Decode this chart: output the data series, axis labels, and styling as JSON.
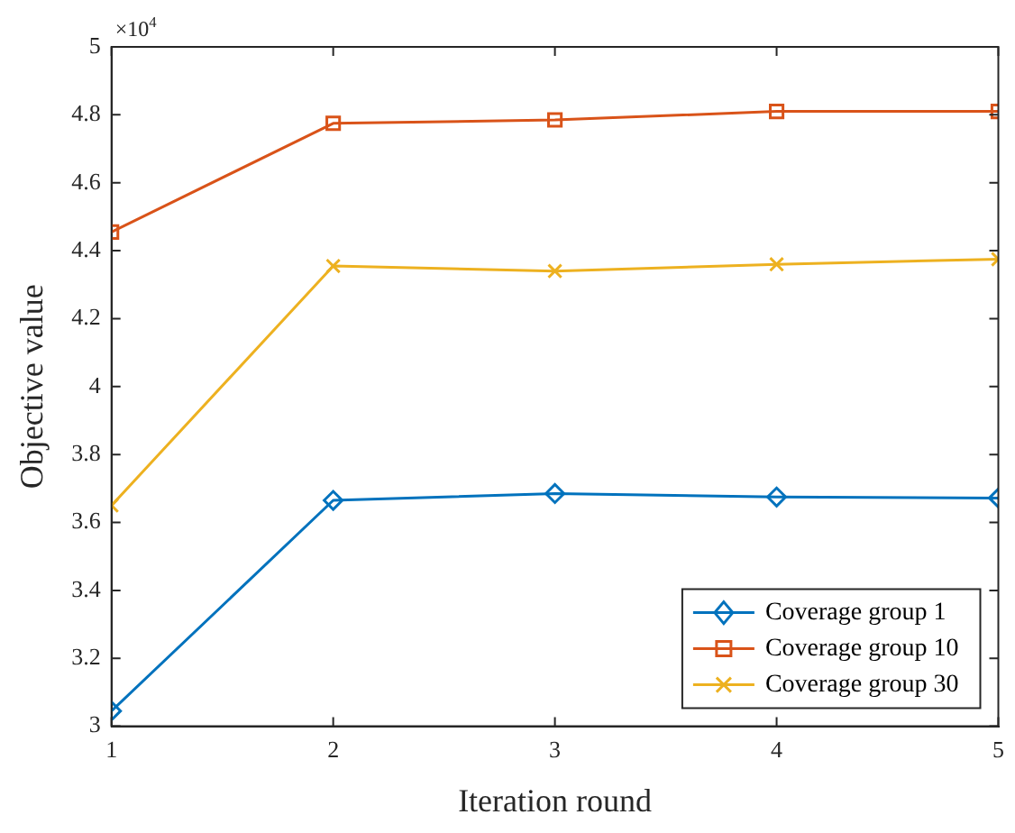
{
  "chart_data": {
    "type": "line",
    "xlabel": "Iteration round",
    "ylabel": "Objective value",
    "annotations": [
      "×10$^{4}$"
    ],
    "x": [
      1,
      2,
      3,
      4,
      5
    ],
    "series": [
      {
        "name": "Coverage group 1",
        "color": "#0072bd",
        "marker": "diamond",
        "values": [
          3.045,
          3.665,
          3.685,
          3.675,
          3.672
        ]
      },
      {
        "name": "Coverage group 10",
        "color": "#d95319",
        "marker": "square",
        "values": [
          4.455,
          4.775,
          4.785,
          4.81,
          4.81
        ]
      },
      {
        "name": "Coverage group 30",
        "color": "#edb120",
        "marker": "cross",
        "values": [
          3.65,
          4.355,
          4.34,
          4.36,
          4.375
        ]
      }
    ],
    "xlim": [
      1,
      5
    ],
    "xticks": [
      1,
      2,
      3,
      4,
      5
    ],
    "ylim": [
      3,
      5
    ],
    "yticks": [
      3,
      3.2,
      3.4,
      3.6,
      3.8,
      4,
      4.2,
      4.4,
      4.6,
      4.8,
      5
    ],
    "grid": false,
    "legend": "bottom right",
    "line_style": "solid"
  }
}
